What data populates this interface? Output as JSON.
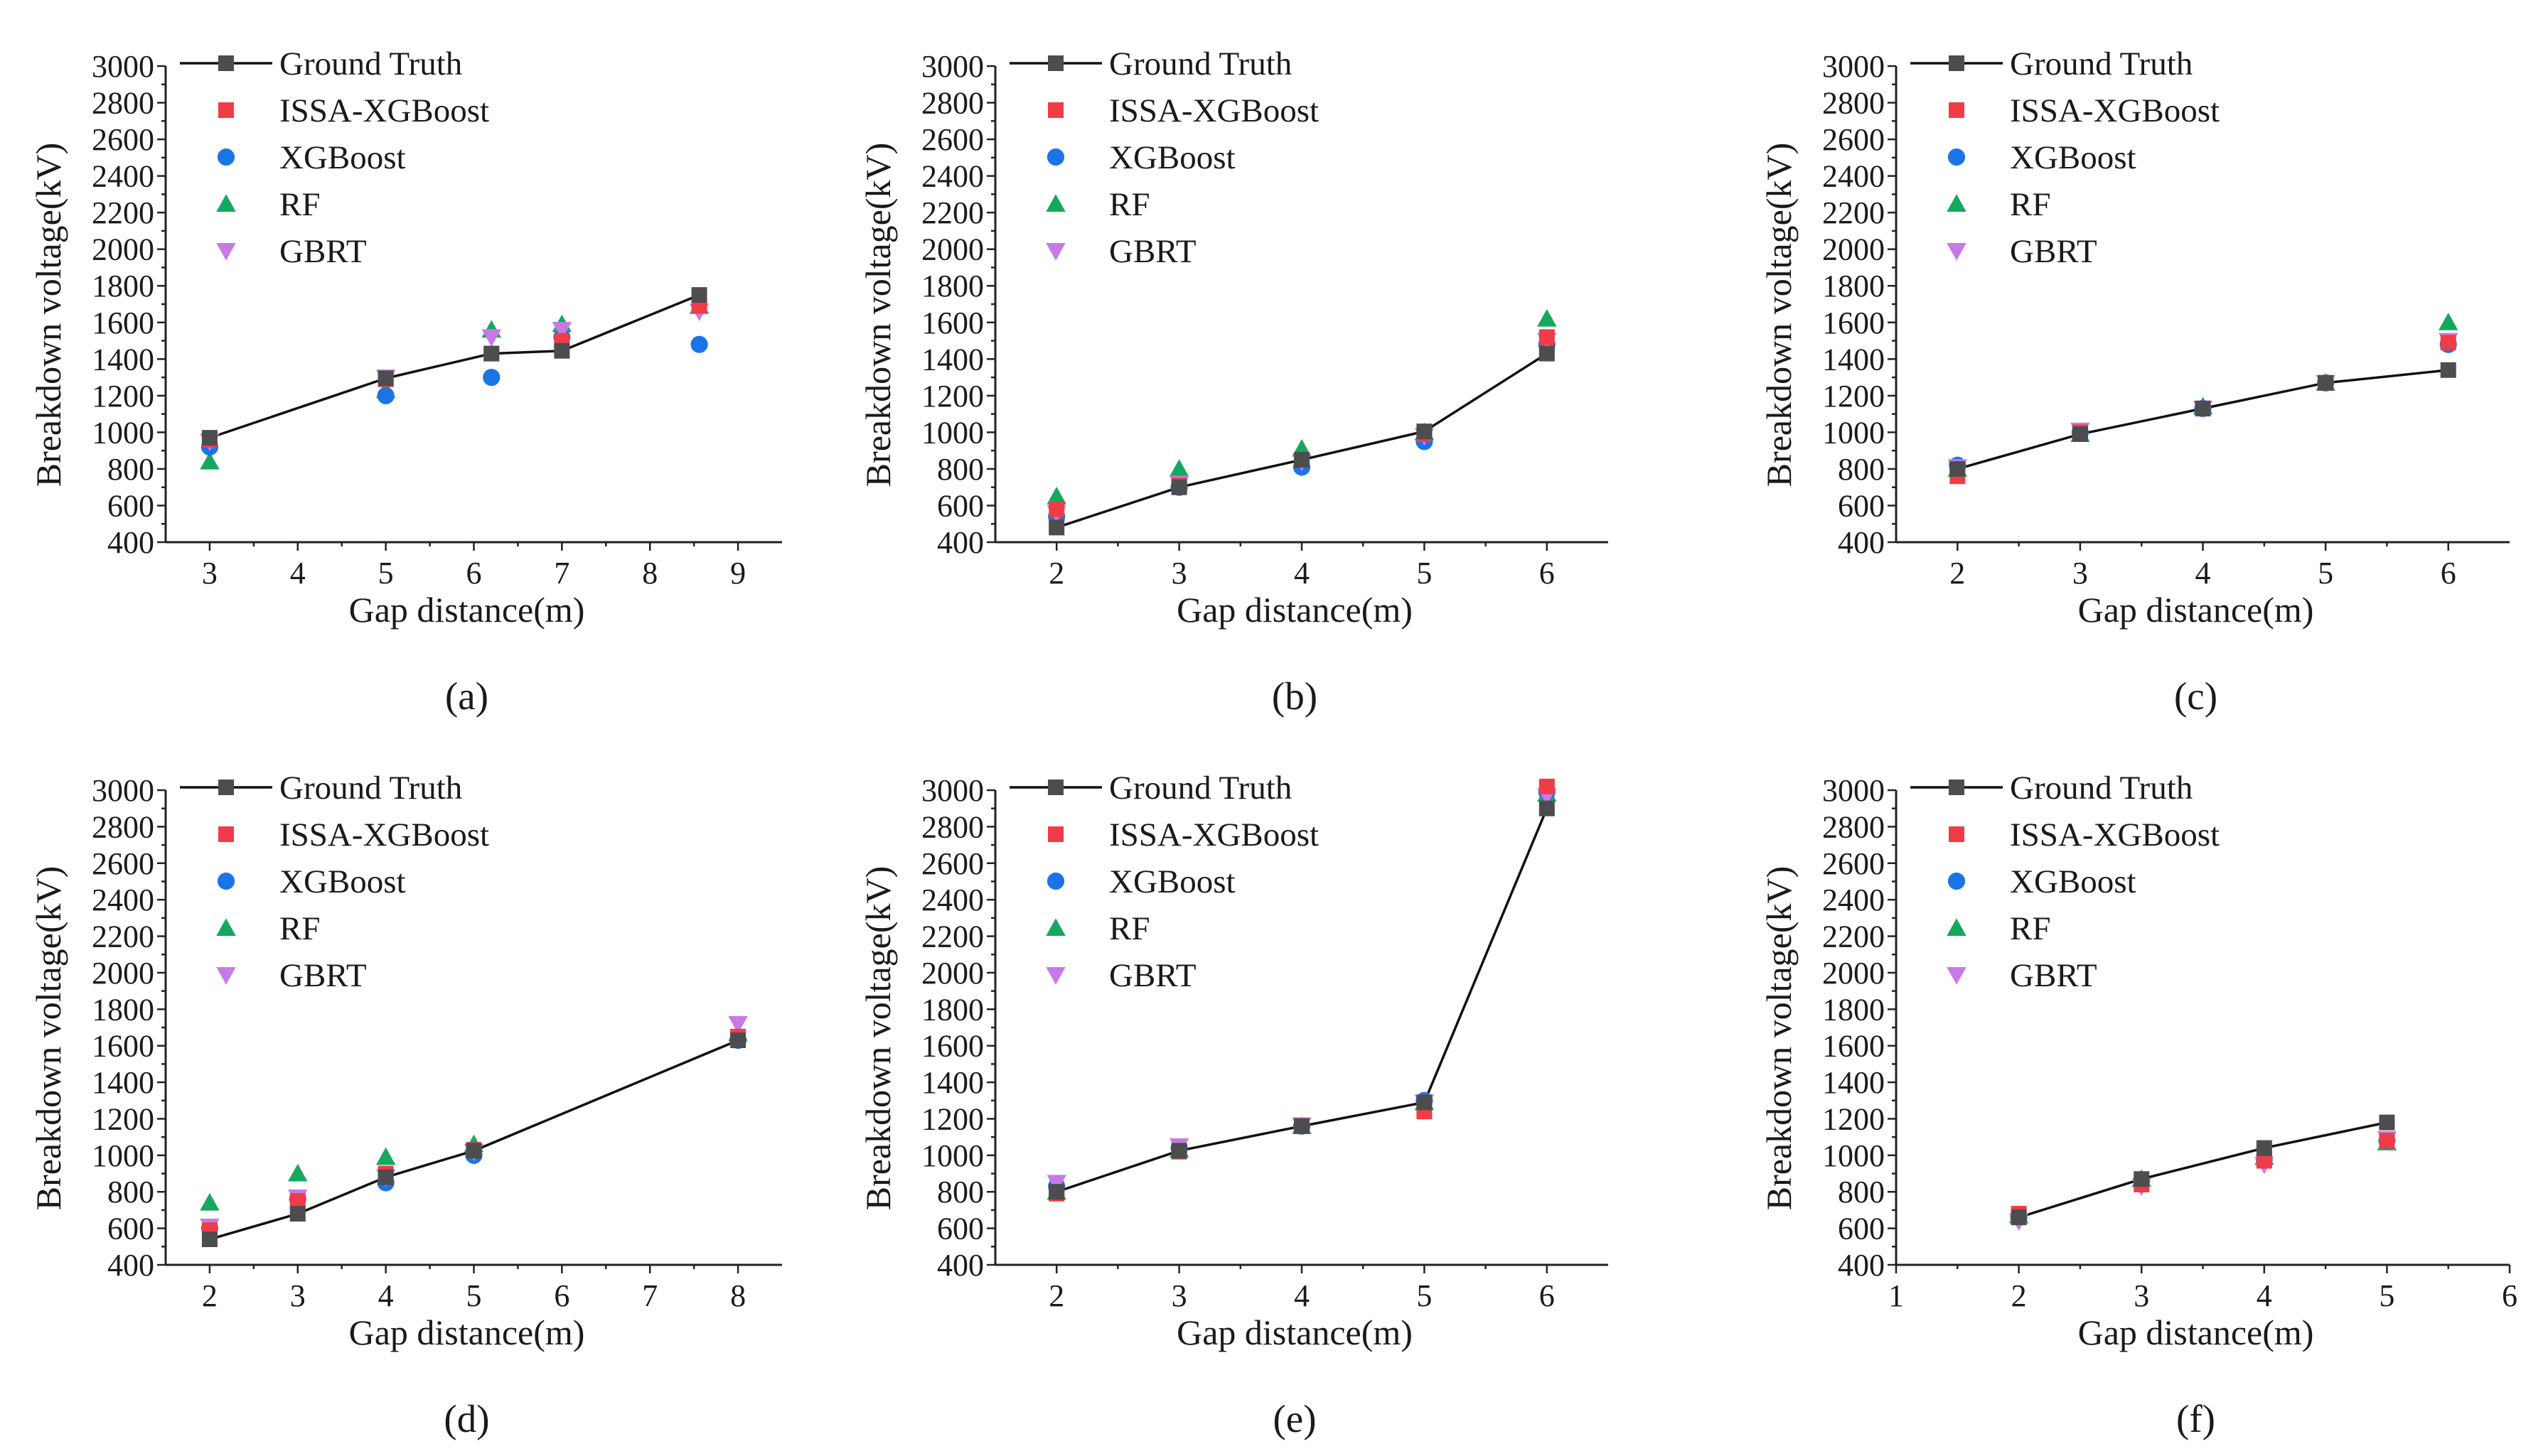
{
  "colors": {
    "Ground Truth": "#4d4d4d",
    "ISSA-XGBoost": "#f03c46",
    "XGBoost": "#1a74e6",
    "RF": "#16a85f",
    "GBRT": "#c77ae6",
    "line": "#111111"
  },
  "chart_data": [
    {
      "type": "line",
      "panel_label": "(a)",
      "xlabel": "Gap distance(m)",
      "ylabel": "Breakdown voltage(kV)",
      "xlim": [
        2.5,
        9.5
      ],
      "xticks": [
        3,
        4,
        5,
        6,
        7,
        8,
        9
      ],
      "ylim": [
        400,
        3000
      ],
      "yticks": [
        400,
        600,
        800,
        1000,
        1200,
        1400,
        1600,
        1800,
        2000,
        2200,
        2400,
        2600,
        2800,
        3000
      ],
      "legend": [
        "Ground Truth",
        "ISSA-XGBoost",
        "XGBoost",
        "RF",
        "GBRT"
      ],
      "x": [
        3,
        5,
        6.2,
        7,
        8.56
      ],
      "series": [
        {
          "name": "Ground Truth",
          "values": [
            970,
            1295,
            1430,
            1445,
            1750
          ]
        },
        {
          "name": "ISSA-XGBoost",
          "values": [
            960,
            1290,
            1430,
            1500,
            1690
          ]
        },
        {
          "name": "XGBoost",
          "values": [
            920,
            1200,
            1300,
            1520,
            1480
          ]
        },
        {
          "name": "RF",
          "values": [
            840,
            1230,
            1560,
            1590,
            1690
          ]
        },
        {
          "name": "GBRT",
          "values": [
            950,
            1300,
            1520,
            1560,
            1660
          ]
        }
      ]
    },
    {
      "type": "line",
      "panel_label": "(b)",
      "xlabel": "Gap distance(m)",
      "ylabel": "Breakdown voltage(kV)",
      "xlim": [
        1.5,
        6.5
      ],
      "xticks": [
        2,
        3,
        4,
        5,
        6
      ],
      "ylim": [
        400,
        3000
      ],
      "yticks": [
        400,
        600,
        800,
        1000,
        1200,
        1400,
        1600,
        1800,
        2000,
        2200,
        2400,
        2600,
        2800,
        3000
      ],
      "legend": [
        "Ground Truth",
        "ISSA-XGBoost",
        "XGBoost",
        "RF",
        "GBRT"
      ],
      "x": [
        2,
        3,
        4,
        5,
        6
      ],
      "series": [
        {
          "name": "Ground Truth",
          "values": [
            480,
            700,
            850,
            1005,
            1430
          ]
        },
        {
          "name": "ISSA-XGBoost",
          "values": [
            580,
            710,
            850,
            990,
            1520
          ]
        },
        {
          "name": "XGBoost",
          "values": [
            540,
            700,
            810,
            950,
            1480
          ]
        },
        {
          "name": "RF",
          "values": [
            650,
            800,
            910,
            1000,
            1620
          ]
        },
        {
          "name": "GBRT",
          "values": [
            560,
            720,
            840,
            980,
            1500
          ]
        }
      ]
    },
    {
      "type": "line",
      "panel_label": "(c)",
      "xlabel": "Gap distance(m)",
      "ylabel": "Breakdown voltage(kV)",
      "xlim": [
        1.5,
        6.5
      ],
      "xticks": [
        2,
        3,
        4,
        5,
        6
      ],
      "ylim": [
        400,
        3000
      ],
      "yticks": [
        400,
        600,
        800,
        1000,
        1200,
        1400,
        1600,
        1800,
        2000,
        2200,
        2400,
        2600,
        2800,
        3000
      ],
      "legend": [
        "Ground Truth",
        "ISSA-XGBoost",
        "XGBoost",
        "RF",
        "GBRT"
      ],
      "x": [
        2,
        3,
        4,
        5,
        6
      ],
      "series": [
        {
          "name": "Ground Truth",
          "values": [
            800,
            990,
            1130,
            1270,
            1340
          ]
        },
        {
          "name": "ISSA-XGBoost",
          "values": [
            760,
            1000,
            1130,
            1270,
            1490
          ]
        },
        {
          "name": "XGBoost",
          "values": [
            820,
            1000,
            1130,
            1270,
            1480
          ]
        },
        {
          "name": "RF",
          "values": [
            800,
            990,
            1140,
            1270,
            1600
          ]
        },
        {
          "name": "GBRT",
          "values": [
            810,
            1010,
            1130,
            1270,
            1500
          ]
        }
      ]
    },
    {
      "type": "line",
      "panel_label": "(d)",
      "xlabel": "Gap distance(m)",
      "ylabel": "Breakdown voltage(kV)",
      "xlim": [
        1.5,
        8.5
      ],
      "xticks": [
        2,
        3,
        4,
        5,
        6,
        7,
        8
      ],
      "ylim": [
        400,
        3000
      ],
      "yticks": [
        400,
        600,
        800,
        1000,
        1200,
        1400,
        1600,
        1800,
        2000,
        2200,
        2400,
        2600,
        2800,
        3000
      ],
      "legend": [
        "Ground Truth",
        "ISSA-XGBoost",
        "XGBoost",
        "RF",
        "GBRT"
      ],
      "x": [
        2,
        3,
        4,
        5,
        8
      ],
      "series": [
        {
          "name": "Ground Truth",
          "values": [
            540,
            680,
            880,
            1025,
            1630
          ]
        },
        {
          "name": "ISSA-XGBoost",
          "values": [
            590,
            750,
            900,
            1030,
            1650
          ]
        },
        {
          "name": "XGBoost",
          "values": [
            600,
            760,
            850,
            1000,
            1630
          ]
        },
        {
          "name": "RF",
          "values": [
            740,
            900,
            990,
            1060,
            1670
          ]
        },
        {
          "name": "GBRT",
          "values": [
            610,
            770,
            880,
            1020,
            1720
          ]
        }
      ]
    },
    {
      "type": "line",
      "panel_label": "(e)",
      "xlabel": "Gap distance(m)",
      "ylabel": "Breakdown voltage(kV)",
      "xlim": [
        1.5,
        6.5
      ],
      "xticks": [
        2,
        3,
        4,
        5,
        6
      ],
      "ylim": [
        400,
        3000
      ],
      "yticks": [
        400,
        600,
        800,
        1000,
        1200,
        1400,
        1600,
        1800,
        2000,
        2200,
        2400,
        2600,
        2800,
        3000
      ],
      "legend": [
        "Ground Truth",
        "ISSA-XGBoost",
        "XGBoost",
        "RF",
        "GBRT"
      ],
      "x": [
        2,
        3,
        4,
        5,
        6
      ],
      "series": [
        {
          "name": "Ground Truth",
          "values": [
            800,
            1025,
            1160,
            1290,
            2900
          ]
        },
        {
          "name": "ISSA-XGBoost",
          "values": [
            790,
            1020,
            1160,
            1240,
            3020
          ]
        },
        {
          "name": "XGBoost",
          "values": [
            830,
            1040,
            1160,
            1300,
            2990
          ]
        },
        {
          "name": "RF",
          "values": [
            800,
            1030,
            1160,
            1290,
            2980
          ]
        },
        {
          "name": "GBRT",
          "values": [
            850,
            1050,
            1165,
            1290,
            2970
          ]
        }
      ]
    },
    {
      "type": "line",
      "panel_label": "(f)",
      "xlabel": "Gap distance(m)",
      "ylabel": "Breakdown voltage(kV)",
      "xlim": [
        1,
        6
      ],
      "xticks": [
        1,
        2,
        3,
        4,
        5,
        6
      ],
      "ylim": [
        400,
        3000
      ],
      "yticks": [
        400,
        600,
        800,
        1000,
        1200,
        1400,
        1600,
        1800,
        2000,
        2200,
        2400,
        2600,
        2800,
        3000
      ],
      "legend": [
        "Ground Truth",
        "ISSA-XGBoost",
        "XGBoost",
        "RF",
        "GBRT"
      ],
      "x": [
        2,
        3,
        4,
        5
      ],
      "series": [
        {
          "name": "Ground Truth",
          "values": [
            660,
            870,
            1040,
            1180
          ]
        },
        {
          "name": "ISSA-XGBoost",
          "values": [
            680,
            840,
            970,
            1080
          ]
        },
        {
          "name": "XGBoost",
          "values": [
            660,
            860,
            980,
            1080
          ]
        },
        {
          "name": "RF",
          "values": [
            670,
            870,
            990,
            1070
          ]
        },
        {
          "name": "GBRT",
          "values": [
            640,
            830,
            950,
            1090
          ]
        }
      ]
    }
  ]
}
